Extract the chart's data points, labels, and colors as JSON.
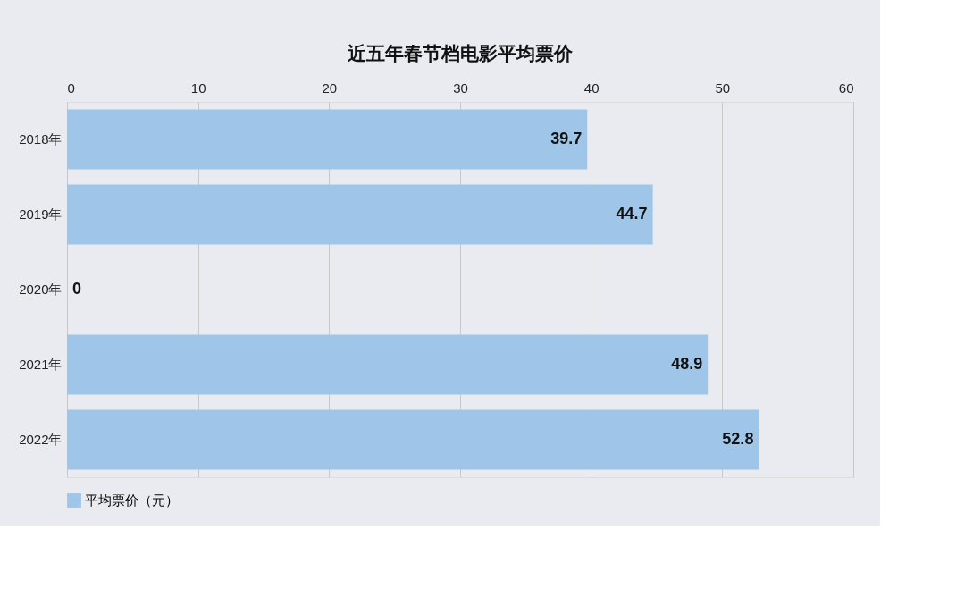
{
  "chart_data": {
    "type": "bar",
    "orientation": "horizontal",
    "title": "近五年春节档电影平均票价",
    "categories": [
      "2018年",
      "2019年",
      "2020年",
      "2021年",
      "2022年"
    ],
    "series": [
      {
        "name": "平均票价（元）",
        "color": "#9fc5e8",
        "values": [
          39.7,
          44.7,
          0,
          48.9,
          52.8
        ]
      }
    ],
    "xlim": [
      0,
      60
    ],
    "xticks": [
      0,
      10,
      20,
      30,
      40,
      50,
      60
    ],
    "grid": "x",
    "legend": "bottom",
    "data_labels": true
  }
}
